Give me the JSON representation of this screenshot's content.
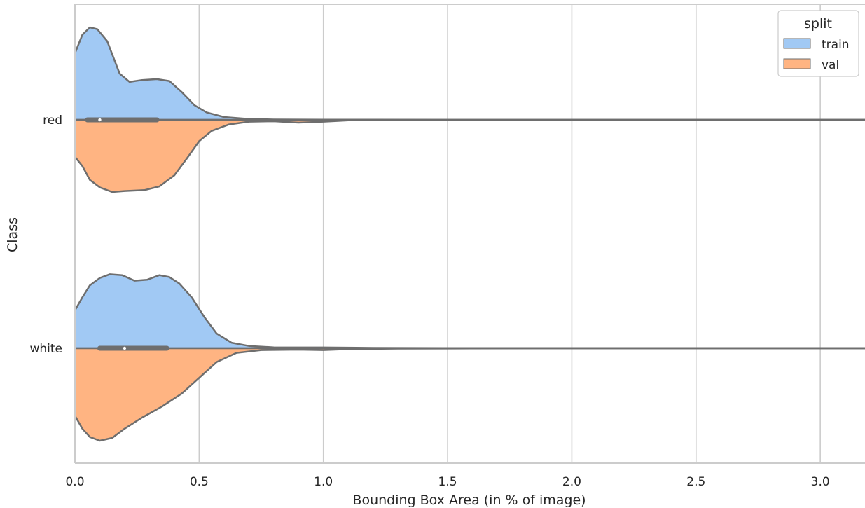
{
  "chart_data": {
    "type": "violin",
    "split_violins": true,
    "xlabel": "Bounding Box Area (in % of image)",
    "ylabel": "Class",
    "xlim": [
      0.0,
      3.18
    ],
    "xticks": [
      "0.0",
      "0.5",
      "1.0",
      "1.5",
      "2.0",
      "2.5",
      "3.0"
    ],
    "grid": "vertical",
    "categories": [
      "red",
      "white"
    ],
    "legend": {
      "title": "split",
      "placement": "top-right",
      "entries": [
        {
          "label": "train",
          "color": "#a1c9f4"
        },
        {
          "label": "val",
          "color": "#ffb482"
        }
      ]
    },
    "series": [
      {
        "class": "red",
        "box": {
          "q1": 0.05,
          "median": 0.1,
          "q3": 0.33
        },
        "train_density": [
          [
            0.0,
            0.72
          ],
          [
            0.03,
            0.92
          ],
          [
            0.06,
            1.0
          ],
          [
            0.09,
            0.98
          ],
          [
            0.13,
            0.85
          ],
          [
            0.18,
            0.5
          ],
          [
            0.22,
            0.41
          ],
          [
            0.27,
            0.43
          ],
          [
            0.33,
            0.44
          ],
          [
            0.38,
            0.42
          ],
          [
            0.43,
            0.3
          ],
          [
            0.48,
            0.16
          ],
          [
            0.53,
            0.08
          ],
          [
            0.6,
            0.03
          ],
          [
            0.7,
            0.01
          ],
          [
            0.8,
            0.004
          ],
          [
            1.0,
            0.002
          ],
          [
            1.2,
            0.002
          ],
          [
            1.5,
            0.001
          ],
          [
            2.0,
            0.001
          ],
          [
            2.5,
            0.001
          ],
          [
            3.18,
            0.001
          ]
        ],
        "val_density": [
          [
            0.0,
            0.4
          ],
          [
            0.03,
            0.5
          ],
          [
            0.06,
            0.65
          ],
          [
            0.1,
            0.73
          ],
          [
            0.15,
            0.78
          ],
          [
            0.2,
            0.77
          ],
          [
            0.28,
            0.76
          ],
          [
            0.34,
            0.72
          ],
          [
            0.4,
            0.6
          ],
          [
            0.45,
            0.42
          ],
          [
            0.5,
            0.23
          ],
          [
            0.55,
            0.12
          ],
          [
            0.62,
            0.05
          ],
          [
            0.7,
            0.02
          ],
          [
            0.8,
            0.015
          ],
          [
            0.9,
            0.03
          ],
          [
            1.0,
            0.02
          ],
          [
            1.1,
            0.005
          ],
          [
            1.3,
            0.002
          ],
          [
            2.0,
            0.001
          ],
          [
            3.18,
            0.001
          ]
        ]
      },
      {
        "class": "white",
        "box": {
          "q1": 0.1,
          "median": 0.2,
          "q3": 0.37
        },
        "train_density": [
          [
            0.0,
            0.41
          ],
          [
            0.03,
            0.55
          ],
          [
            0.06,
            0.68
          ],
          [
            0.1,
            0.76
          ],
          [
            0.14,
            0.8
          ],
          [
            0.19,
            0.79
          ],
          [
            0.24,
            0.73
          ],
          [
            0.29,
            0.74
          ],
          [
            0.34,
            0.79
          ],
          [
            0.38,
            0.77
          ],
          [
            0.42,
            0.7
          ],
          [
            0.47,
            0.55
          ],
          [
            0.52,
            0.34
          ],
          [
            0.57,
            0.16
          ],
          [
            0.63,
            0.06
          ],
          [
            0.7,
            0.025
          ],
          [
            0.8,
            0.01
          ],
          [
            1.0,
            0.008
          ],
          [
            1.2,
            0.004
          ],
          [
            1.5,
            0.002
          ],
          [
            2.0,
            0.002
          ],
          [
            2.5,
            0.002
          ],
          [
            3.18,
            0.002
          ]
        ],
        "val_density": [
          [
            0.0,
            0.73
          ],
          [
            0.03,
            0.87
          ],
          [
            0.06,
            0.96
          ],
          [
            0.1,
            1.0
          ],
          [
            0.15,
            0.97
          ],
          [
            0.2,
            0.87
          ],
          [
            0.27,
            0.75
          ],
          [
            0.35,
            0.63
          ],
          [
            0.43,
            0.49
          ],
          [
            0.5,
            0.32
          ],
          [
            0.57,
            0.15
          ],
          [
            0.65,
            0.05
          ],
          [
            0.75,
            0.02
          ],
          [
            0.9,
            0.015
          ],
          [
            1.0,
            0.02
          ],
          [
            1.1,
            0.01
          ],
          [
            1.3,
            0.004
          ],
          [
            1.6,
            0.002
          ],
          [
            2.0,
            0.001
          ],
          [
            3.18,
            0.001
          ]
        ]
      }
    ]
  }
}
